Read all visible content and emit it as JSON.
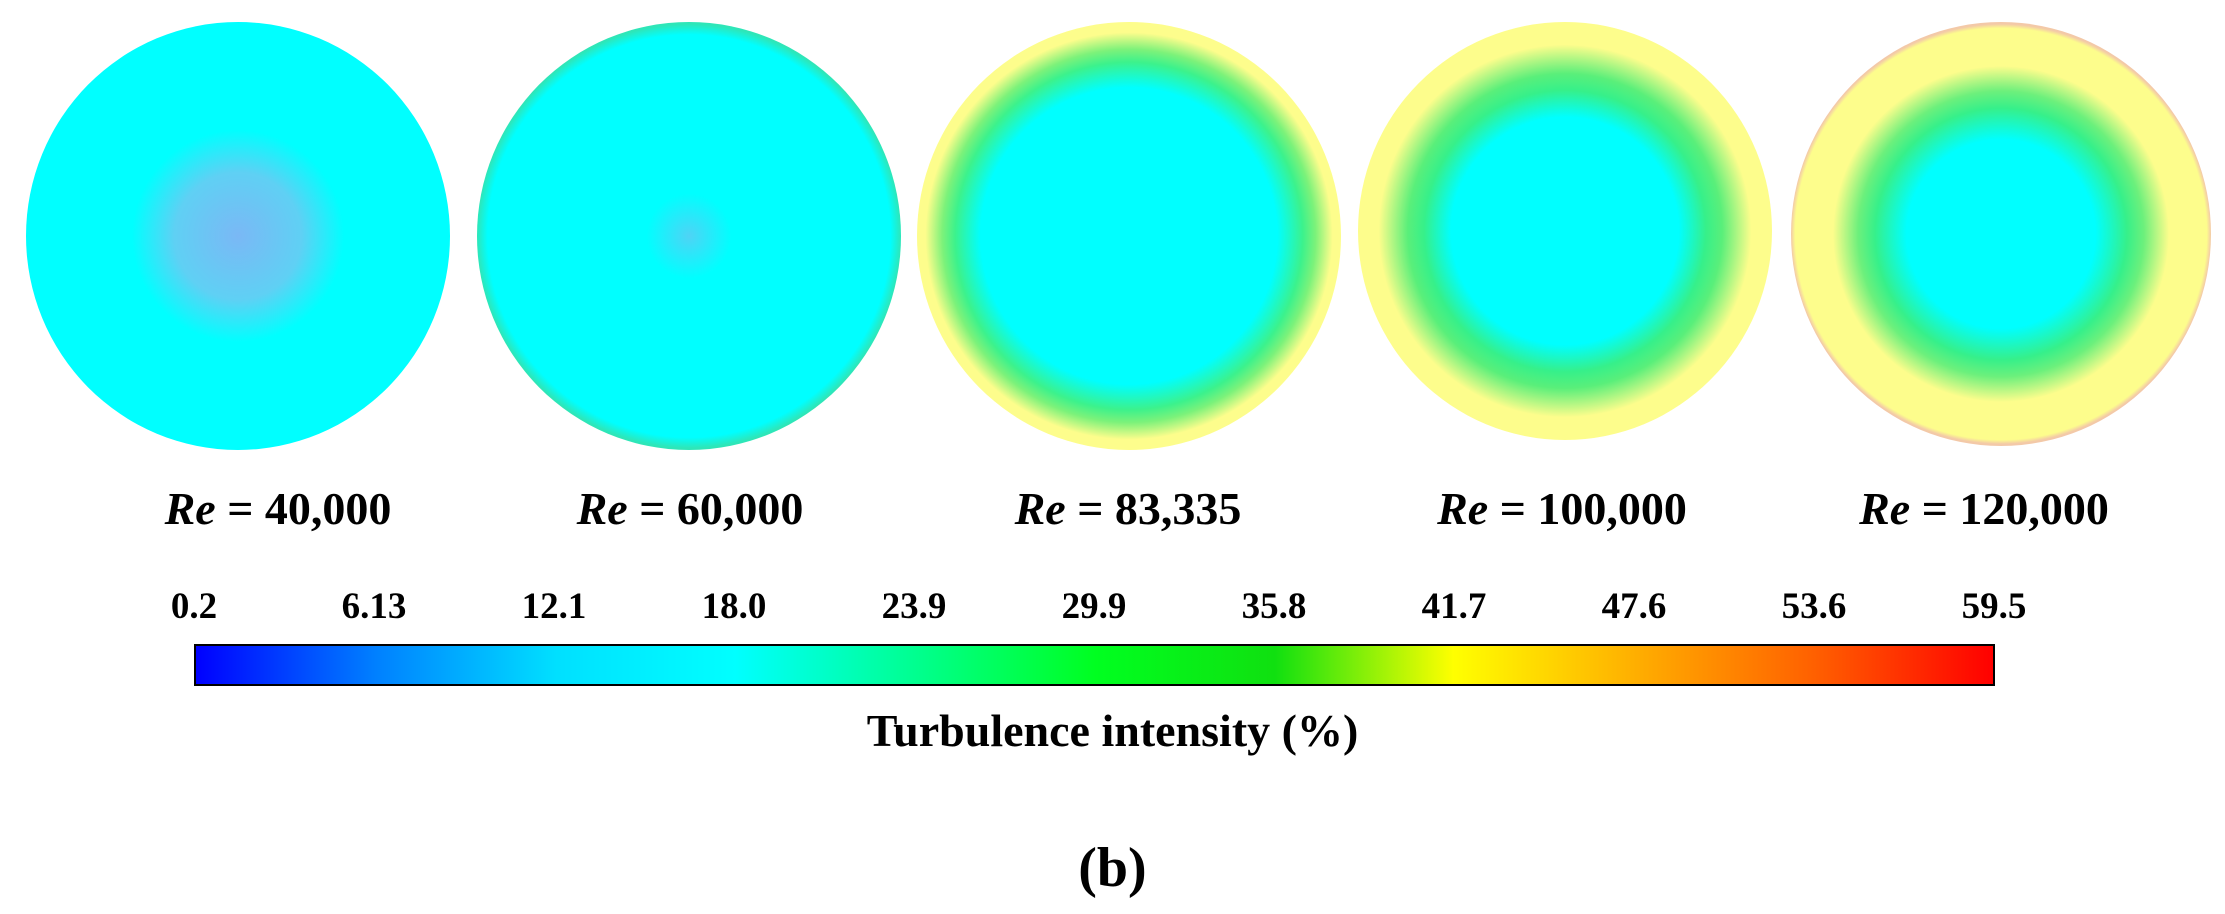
{
  "chart_data": {
    "type": "heatmap",
    "description_kind": "cross-section contour plots",
    "panel_label": "(b)",
    "re_symbol": "Re",
    "equals_sign": "=",
    "panels": [
      {
        "re_value": "40,000",
        "stops": [
          {
            "color": "#7ab8f5",
            "at": 0
          },
          {
            "color": "#5fd0f4",
            "at": 30
          },
          {
            "color": "#00ffff",
            "at": 50
          },
          {
            "color": "#00ffff",
            "at": 100
          }
        ]
      },
      {
        "re_value": "60,000",
        "stops": [
          {
            "color": "#4fd3f5",
            "at": 0
          },
          {
            "color": "#00ffff",
            "at": 20
          },
          {
            "color": "#00ffff",
            "at": 95
          },
          {
            "color": "#2ee6b8",
            "at": 100
          }
        ]
      },
      {
        "re_value": "83,335",
        "stops": [
          {
            "color": "#00ffff",
            "at": 0
          },
          {
            "color": "#00ffff",
            "at": 70
          },
          {
            "color": "#3cf28c",
            "at": 82
          },
          {
            "color": "#7cf27a",
            "at": 88
          },
          {
            "color": "#fdfd8c",
            "at": 96
          },
          {
            "color": "#fdfd8c",
            "at": 100
          }
        ]
      },
      {
        "re_value": "100,000",
        "stops": [
          {
            "color": "#00ffff",
            "at": 0
          },
          {
            "color": "#00ffff",
            "at": 55
          },
          {
            "color": "#36f08a",
            "at": 68
          },
          {
            "color": "#5aef7a",
            "at": 76
          },
          {
            "color": "#fdfd8c",
            "at": 90
          },
          {
            "color": "#fdfd8c",
            "at": 100
          }
        ]
      },
      {
        "re_value": "120,000",
        "stops": [
          {
            "color": "#00ffff",
            "at": 0
          },
          {
            "color": "#00ffff",
            "at": 45
          },
          {
            "color": "#36f08a",
            "at": 60
          },
          {
            "color": "#6cf07c",
            "at": 68
          },
          {
            "color": "#fdfd8c",
            "at": 80
          },
          {
            "color": "#fdfd8c",
            "at": 98
          },
          {
            "color": "#f3c9a8",
            "at": 100
          }
        ]
      }
    ],
    "colorbar": {
      "title": "Turbulence intensity (%)",
      "range": [
        0.2,
        59.5
      ],
      "ticks": [
        "0.2",
        "6.13",
        "12.1",
        "18.0",
        "23.9",
        "29.9",
        "35.8",
        "41.7",
        "47.6",
        "53.6",
        "59.5"
      ],
      "colormap": [
        {
          "value": 0.2,
          "color": "#0000ff"
        },
        {
          "value": 6.13,
          "color": "#0080ff"
        },
        {
          "value": 12.1,
          "color": "#00e0ff"
        },
        {
          "value": 18.0,
          "color": "#00ffff"
        },
        {
          "value": 23.9,
          "color": "#00ff90"
        },
        {
          "value": 29.9,
          "color": "#00ff20"
        },
        {
          "value": 35.8,
          "color": "#10e010"
        },
        {
          "value": 41.7,
          "color": "#ffff00"
        },
        {
          "value": 47.6,
          "color": "#ffb000"
        },
        {
          "value": 53.6,
          "color": "#ff6000"
        },
        {
          "value": 59.5,
          "color": "#ff0000"
        }
      ]
    }
  }
}
